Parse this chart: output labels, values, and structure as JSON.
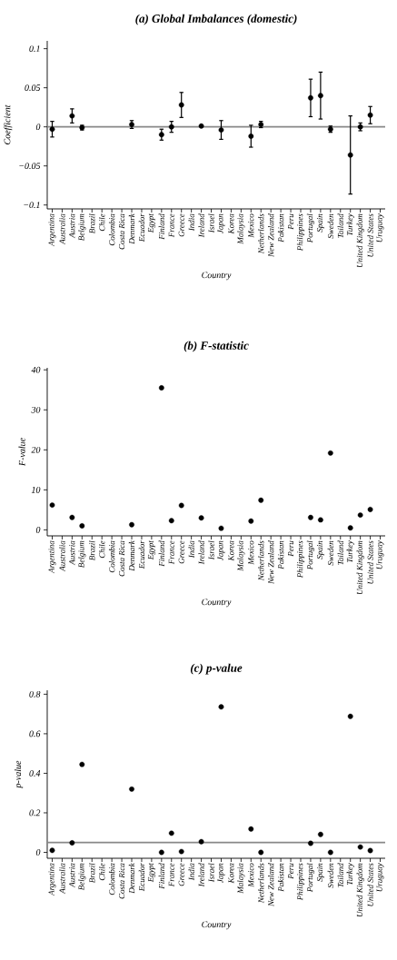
{
  "chart_data": [
    {
      "type": "scatter",
      "title": "(a) Global Imbalances (domestic)",
      "xlabel": "Country",
      "ylabel": "Coefficient",
      "categories": [
        "Argentina",
        "Australia",
        "Austria",
        "Belgium",
        "Brazil",
        "Chile",
        "Colombia",
        "Costa Rica",
        "Denmark",
        "Ecuador",
        "Egypt",
        "Finland",
        "France",
        "Greece",
        "India",
        "Ireland",
        "Israel",
        "Japan",
        "Korea",
        "Malaysia",
        "Mexico",
        "Netherlands",
        "New Zealand",
        "Pakistan",
        "Peru",
        "Philippines",
        "Portugal",
        "Spain",
        "Sweden",
        "Tailand",
        "Turkey",
        "United Kingdom",
        "United States",
        "Uruguay"
      ],
      "values": [
        -0.003,
        null,
        0.014,
        -0.001,
        null,
        null,
        null,
        null,
        0.003,
        null,
        null,
        -0.01,
        0.0,
        0.028,
        null,
        0.001,
        null,
        -0.004,
        null,
        null,
        -0.012,
        0.003,
        null,
        null,
        null,
        null,
        0.037,
        0.04,
        -0.003,
        null,
        -0.036,
        0.0,
        0.015,
        null
      ],
      "errors": [
        0.01,
        null,
        0.009,
        0.003,
        null,
        null,
        null,
        null,
        0.005,
        null,
        null,
        0.007,
        0.007,
        0.016,
        null,
        null,
        null,
        0.012,
        null,
        null,
        0.014,
        0.004,
        null,
        null,
        null,
        null,
        0.024,
        0.03,
        0.004,
        null,
        0.05,
        0.005,
        0.011,
        null
      ],
      "color": "#000000",
      "ylim": [
        -0.105,
        0.11
      ],
      "yticks": [
        {
          "value": -0.1,
          "label": "−0.1"
        },
        {
          "value": -0.05,
          "label": "−0.05"
        },
        0,
        0.05,
        0.1
      ],
      "ref_lines": [
        {
          "axis": "y",
          "value": 0,
          "color": "#888888"
        }
      ]
    },
    {
      "type": "scatter",
      "title": "(b) F-statistic",
      "xlabel": "Country",
      "ylabel": "F-value",
      "categories": [
        "Argentina",
        "Australia",
        "Austria",
        "Belgium",
        "Brazil",
        "Chile",
        "Colombia",
        "Costa Rica",
        "Denmark",
        "Ecuador",
        "Egypt",
        "Finland",
        "France",
        "Greece",
        "India",
        "Ireland",
        "Israel",
        "Japan",
        "Korea",
        "Malaysia",
        "Mexico",
        "Netherlands",
        "New Zealand",
        "Pakistan",
        "Peru",
        "Philippines",
        "Portugal",
        "Spain",
        "Sweden",
        "Tailand",
        "Turkey",
        "United Kingdom",
        "United States",
        "Uruguay"
      ],
      "values": [
        6.2,
        null,
        3.1,
        1.0,
        null,
        null,
        null,
        null,
        1.3,
        null,
        null,
        35.5,
        2.3,
        6.1,
        null,
        3.0,
        null,
        0.4,
        null,
        null,
        2.2,
        7.4,
        null,
        null,
        null,
        null,
        3.1,
        2.5,
        19.2,
        null,
        0.5,
        3.7,
        5.1,
        null
      ],
      "color": "#000000",
      "ylim": [
        -1.5,
        40.5
      ],
      "yticks": [
        0,
        10,
        20,
        30,
        40
      ]
    },
    {
      "type": "scatter",
      "title": "(c) p-value",
      "xlabel": "Country",
      "ylabel": "p-value",
      "categories": [
        "Argentina",
        "Australia",
        "Austria",
        "Belgium",
        "Brazil",
        "Chile",
        "Colombia",
        "Costa Rica",
        "Denmark",
        "Ecuador",
        "Egypt",
        "Finland",
        "France",
        "Greece",
        "India",
        "Ireland",
        "Israel",
        "Japan",
        "Korea",
        "Malaysia",
        "Mexico",
        "Netherlands",
        "New Zealand",
        "Pakistan",
        "Peru",
        "Philippines",
        "Portugal",
        "Spain",
        "Sweden",
        "Tailand",
        "Turkey",
        "United Kingdom",
        "United States",
        "Uruguay"
      ],
      "values": [
        0.01,
        null,
        0.048,
        0.445,
        null,
        null,
        null,
        null,
        0.32,
        null,
        null,
        0.0,
        0.097,
        0.004,
        null,
        0.054,
        null,
        0.736,
        null,
        null,
        0.118,
        0.0,
        null,
        null,
        null,
        null,
        0.046,
        0.091,
        0.0,
        null,
        0.688,
        0.027,
        0.009,
        null
      ],
      "color": "#000000",
      "ylim": [
        -0.03,
        0.82
      ],
      "yticks": [
        0,
        0.2,
        0.4,
        0.6,
        0.8
      ],
      "ref_lines": [
        {
          "axis": "y",
          "value": 0.05,
          "color": "#888888"
        }
      ]
    }
  ]
}
